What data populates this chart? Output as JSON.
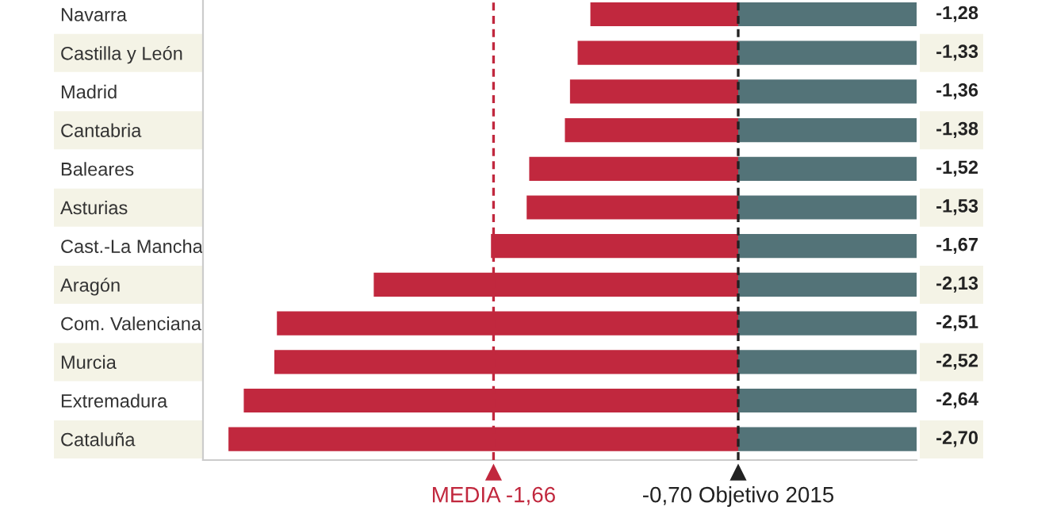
{
  "chart_data": {
    "type": "bar",
    "orientation": "horizontal",
    "stacked": true,
    "categories": [
      "Navarra",
      "Castilla y León",
      "Madrid",
      "Cantabria",
      "Baleares",
      "Asturias",
      "Cast.-La Mancha",
      "Aragón",
      "Com. Valenciana",
      "Murcia",
      "Extremadura",
      "Cataluña"
    ],
    "series": [
      {
        "color": "#537378",
        "values": [
          -0.7,
          -0.7,
          -0.7,
          -0.7,
          -0.7,
          -0.7,
          -0.7,
          -0.7,
          -0.7,
          -0.7,
          -0.7,
          -0.7
        ]
      },
      {
        "color": "#c1283e",
        "values": [
          -0.58,
          -0.63,
          -0.66,
          -0.68,
          -0.82,
          -0.83,
          -0.97,
          -1.43,
          -1.81,
          -1.82,
          -1.94,
          -2.0
        ]
      }
    ],
    "totals": [
      "-1,28",
      "-1,33",
      "-1,36",
      "-1,38",
      "-1,52",
      "-1,53",
      "-1,67",
      "-2,13",
      "-2,51",
      "-2,52",
      "-2,64",
      "-2,70"
    ],
    "xlim": [
      -2.8,
      0
    ],
    "ref_lines": [
      {
        "axis": "x",
        "value": -1.66,
        "label": "MEDIA -1,66",
        "color": "#c1283e",
        "line_style": "dashed"
      },
      {
        "axis": "x",
        "value": -0.7,
        "label": "-0,70 Objetivo 2015",
        "color": "#222222",
        "line_style": "dashed"
      }
    ],
    "tick_labels": "y",
    "grid": false
  }
}
